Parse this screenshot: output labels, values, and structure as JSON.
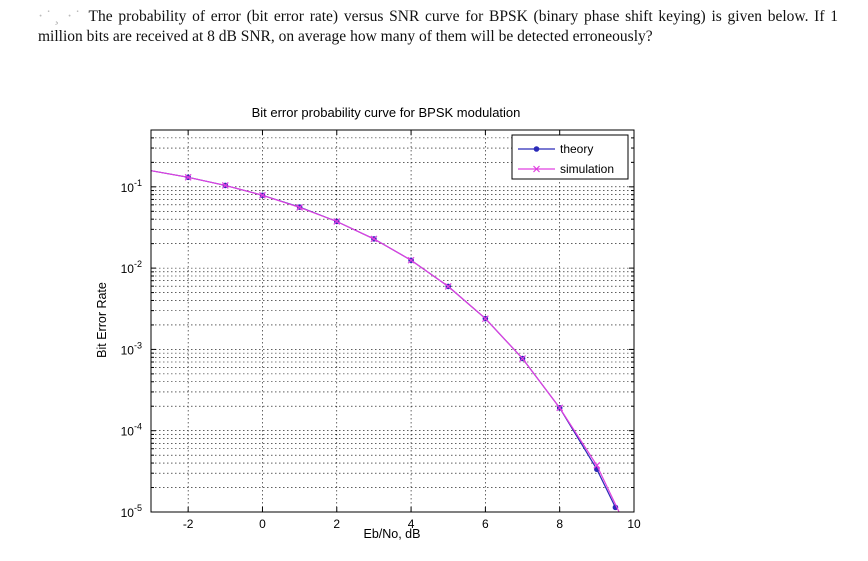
{
  "question": {
    "prefix": "·˙¸ ·˙",
    "text": "The probability of error (bit error rate) versus SNR curve for BPSK (binary phase shift keying) is given below. If 1 million bits are received at 8 dB SNR, on average how many of them will be detected erroneously?"
  },
  "chart_data": {
    "type": "line",
    "title": "Bit error probability curve for BPSK modulation",
    "xlabel": "Eb/No, dB",
    "ylabel": "Bit Error Rate",
    "xlim": [
      -3,
      10
    ],
    "ylim": [
      1e-05,
      0.5
    ],
    "y_scale": "log",
    "x_ticks": [
      -2,
      0,
      2,
      4,
      6,
      8,
      10
    ],
    "x_tick_labels": [
      "-2",
      "0",
      "2",
      "4",
      "6",
      "8",
      "10"
    ],
    "y_ticks": [
      0.1,
      0.01,
      0.001,
      0.0001,
      1e-05
    ],
    "y_tick_bases": [
      "10",
      "10",
      "10",
      "10",
      "10"
    ],
    "y_tick_exps": [
      "-1",
      "-2",
      "-3",
      "-4",
      "-5"
    ],
    "grid": true,
    "legend_position": "top-right",
    "series": [
      {
        "name": "theory",
        "color": "#2a2ab8",
        "marker": "dot",
        "x": [
          -3,
          -2,
          -1,
          0,
          1,
          2,
          3,
          4,
          5,
          6,
          7,
          8,
          9,
          9.5
        ],
        "y": [
          0.158,
          0.131,
          0.104,
          0.0786,
          0.0563,
          0.0375,
          0.0229,
          0.0125,
          0.00595,
          0.00239,
          0.000773,
          0.000191,
          3.36e-05,
          1.14e-05
        ]
      },
      {
        "name": "simulation",
        "color": "#e040e0",
        "marker": "x",
        "x": [
          -3,
          -2,
          -1,
          0,
          1,
          2,
          3,
          4,
          5,
          6,
          7,
          8,
          9,
          9.6
        ],
        "y": [
          0.158,
          0.131,
          0.104,
          0.0786,
          0.0558,
          0.0375,
          0.0229,
          0.0125,
          0.00595,
          0.00239,
          0.000773,
          0.000191,
          3.75e-05,
          1e-05
        ]
      }
    ]
  }
}
